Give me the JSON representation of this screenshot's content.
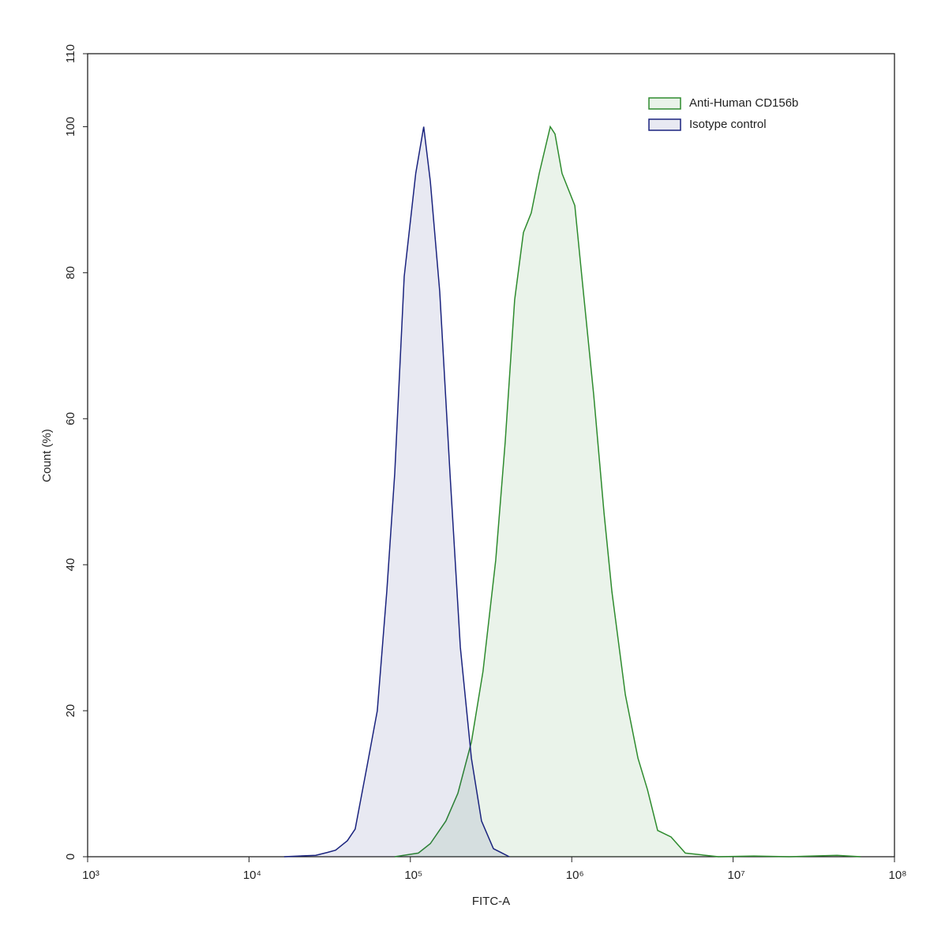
{
  "chart_data": {
    "type": "area",
    "x_label": "FITC-A",
    "y_label": "Count (%)",
    "xscale": "log",
    "xlim": [
      1000,
      100000000
    ],
    "xticks": [
      {
        "value": 1000,
        "label": "10³"
      },
      {
        "value": 10000,
        "label": "10⁴"
      },
      {
        "value": 100000,
        "label": "10⁵"
      },
      {
        "value": 1000000,
        "label": "10⁶"
      },
      {
        "value": 10000000,
        "label": "10⁷"
      },
      {
        "value": 100000000,
        "label": "10⁸"
      }
    ],
    "ylim": [
      0,
      110
    ],
    "yticks": [
      0,
      20,
      40,
      60,
      80,
      100,
      110
    ],
    "legend": "upper right",
    "series": [
      {
        "name": "Anti-Human CD156b",
        "color": "#2e8b2e",
        "x": [
          80000,
          112000,
          133000,
          166000,
          197000,
          239000,
          282000,
          338000,
          387000,
          443000,
          502000,
          561000,
          629000,
          736000,
          788000,
          871000,
          1045000,
          1168000,
          1367000,
          1585000,
          1774000,
          2148000,
          2572000,
          2944000,
          3406000,
          4126000,
          5058000,
          8111000,
          13450000,
          22300000,
          44000000,
          61700000
        ],
        "values": [
          0,
          0.5,
          1.8,
          4.9,
          8.7,
          15.7,
          25.4,
          40.6,
          56.8,
          76.3,
          85.5,
          88.2,
          93.6,
          100,
          99,
          93.6,
          89.2,
          78.4,
          63.3,
          47.1,
          36.3,
          22.2,
          13.5,
          9.2,
          3.6,
          2.7,
          0.5,
          0,
          0.1,
          0,
          0.2,
          0
        ]
      },
      {
        "name": "Isotype control",
        "color": "#1a237e",
        "x": [
          16500,
          25900,
          30700,
          34400,
          40700,
          45500,
          53900,
          62400,
          71400,
          80000,
          91600,
          108000,
          121000,
          133000,
          152000,
          176000,
          204000,
          239000,
          276000,
          327000,
          410000
        ],
        "values": [
          0,
          0.2,
          0.6,
          0.9,
          2.2,
          3.8,
          12.4,
          20,
          36.3,
          52.5,
          79.5,
          93.6,
          100,
          92.5,
          77.4,
          52.5,
          28.7,
          13.5,
          4.9,
          1.1,
          0
        ]
      }
    ]
  }
}
